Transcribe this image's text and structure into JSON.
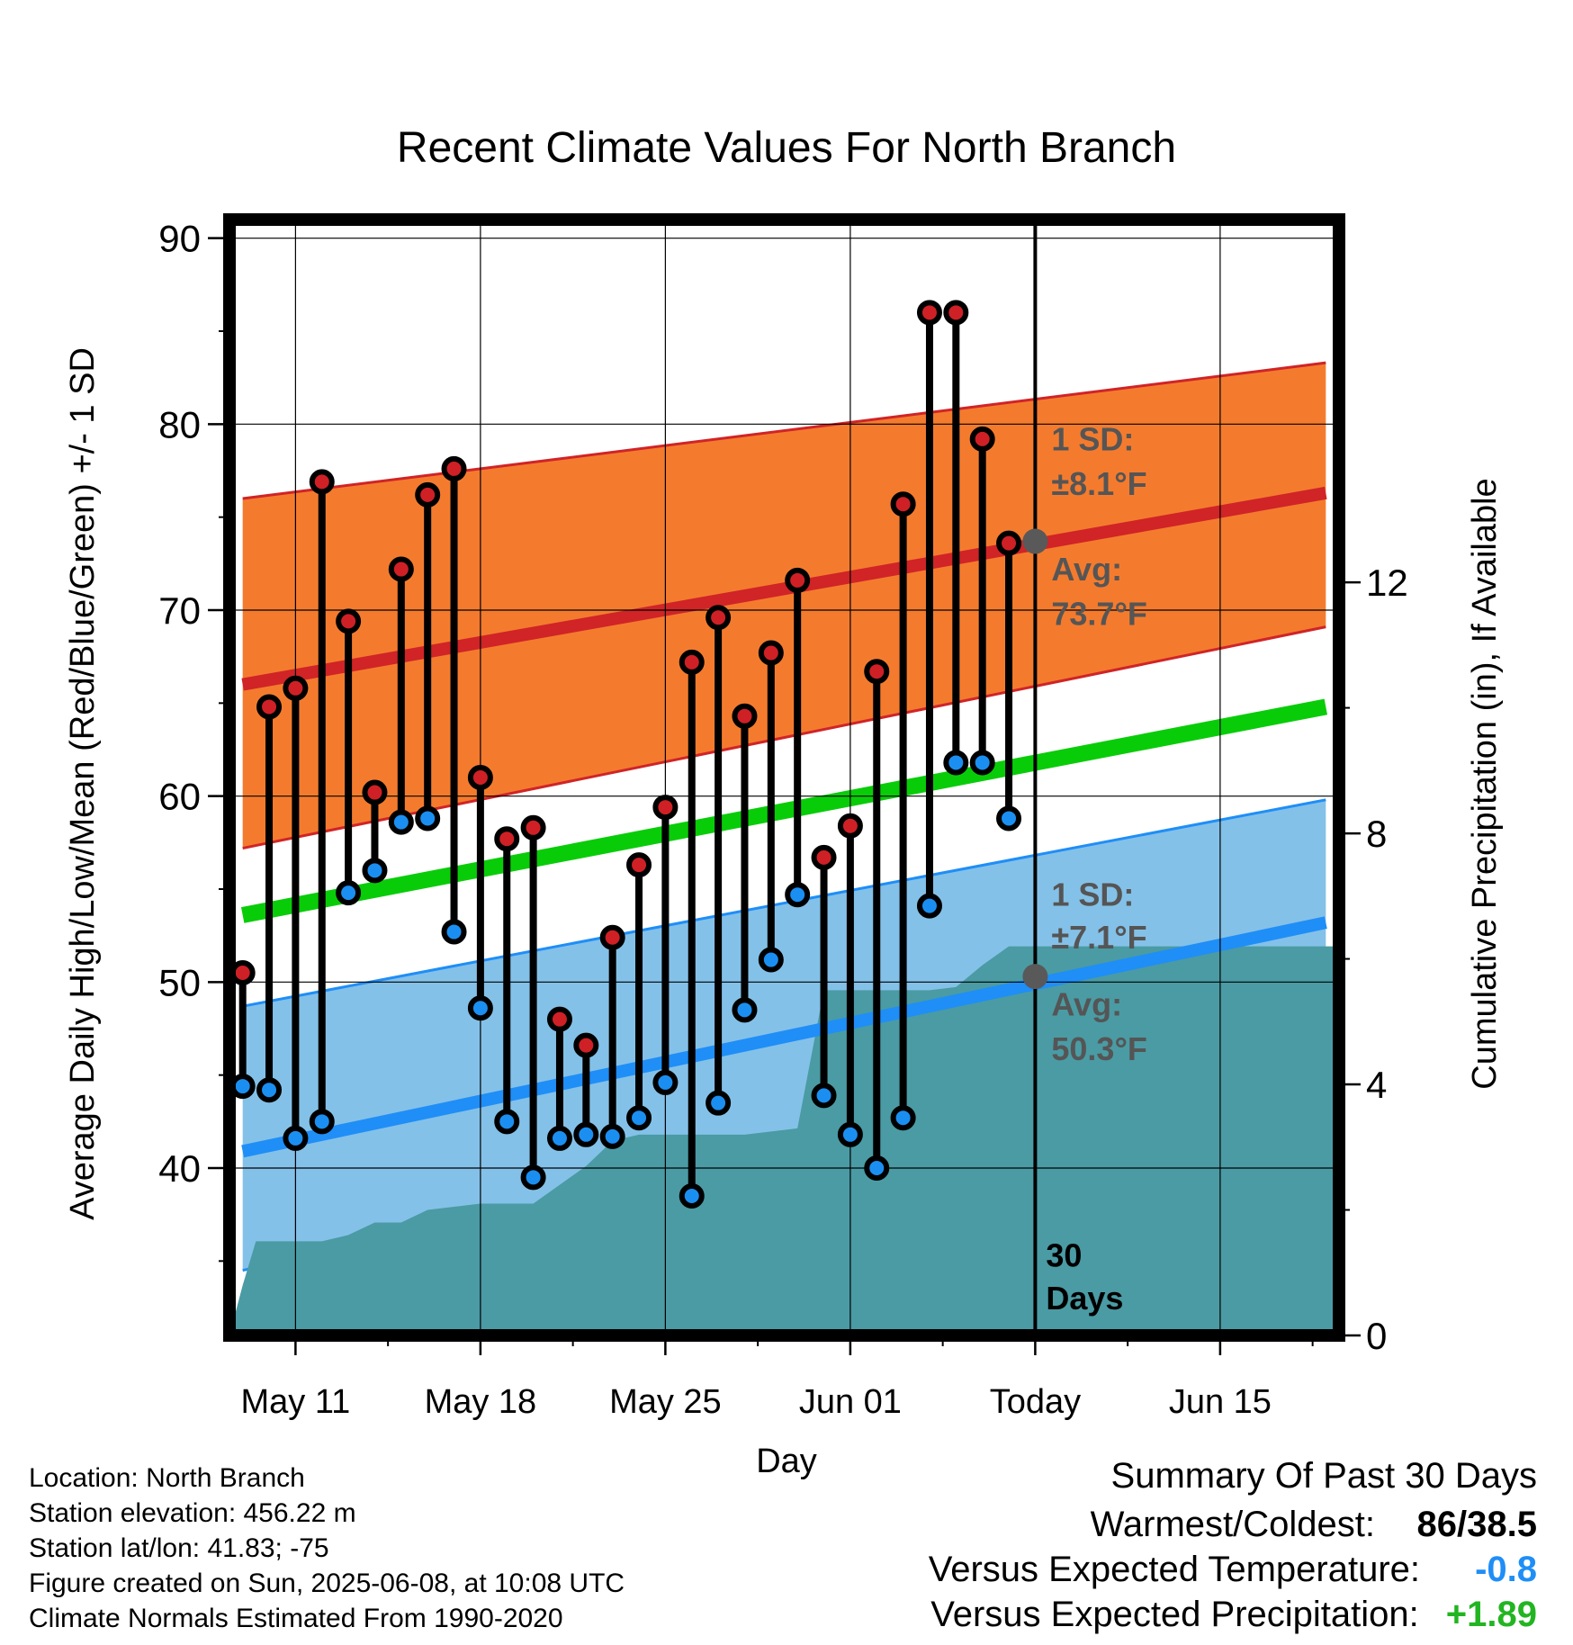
{
  "chart_data": {
    "type": "line",
    "title": "Recent Climate Values For North Branch",
    "xlabel": "Day",
    "ylabel": "Average Daily High/Low/Mean (Red/Blue/Green) +/- 1 SD",
    "y2label": "Cumulative Precipitation (in), If Available",
    "ylim": [
      31,
      91
    ],
    "y2lim": [
      0,
      17.78
    ],
    "yticks": [
      40,
      50,
      60,
      70,
      80,
      90
    ],
    "y2ticks": [
      0,
      4,
      8,
      12
    ],
    "xlim": [
      -0.5,
      41.5
    ],
    "xticks": [
      {
        "day": 2,
        "label": "May 11"
      },
      {
        "day": 9,
        "label": "May 18"
      },
      {
        "day": 16,
        "label": "May 25"
      },
      {
        "day": 23,
        "label": "Jun 01"
      },
      {
        "day": 30,
        "label": "Today"
      },
      {
        "day": 37,
        "label": "Jun 15"
      }
    ],
    "grid": true,
    "today_day": 30,
    "colors": {
      "high_band": "#f47b2e",
      "high_line": "#d02427",
      "low_band": "#84c1e8",
      "low_line": "#1f8ef7",
      "mean_line": "#09cc09",
      "precip": "#4a9ba4",
      "high_marker": "#cf2026",
      "low_marker": "#1b8ff1"
    },
    "normals": {
      "high_mean": [
        [
          0,
          66.0
        ],
        [
          41,
          76.3
        ]
      ],
      "high_upper": [
        [
          0,
          76.0
        ],
        [
          41,
          83.3
        ]
      ],
      "high_lower": [
        [
          0,
          57.2
        ],
        [
          41,
          69.1
        ]
      ],
      "low_mean": [
        [
          0,
          40.9
        ],
        [
          41,
          53.2
        ]
      ],
      "low_upper": [
        [
          0,
          48.7
        ],
        [
          41,
          59.8
        ]
      ],
      "low_lower": [
        [
          0,
          34.5
        ],
        [
          41,
          47.3
        ]
      ],
      "daily_mean": [
        [
          0,
          53.6
        ],
        [
          41,
          64.8
        ]
      ]
    },
    "daily": {
      "day": [
        0,
        1,
        2,
        3,
        4,
        5,
        6,
        7,
        8,
        9,
        10,
        11,
        12,
        13,
        14,
        15,
        16,
        17,
        18,
        19,
        20,
        21,
        22,
        23,
        24,
        25,
        26,
        27,
        28,
        29
      ],
      "high": [
        50.5,
        64.8,
        65.8,
        76.9,
        69.4,
        60.2,
        72.2,
        76.2,
        77.6,
        61.0,
        57.7,
        58.3,
        48.0,
        46.6,
        52.4,
        56.3,
        59.4,
        67.2,
        69.6,
        64.3,
        67.7,
        71.6,
        56.7,
        58.4,
        66.7,
        75.7,
        86.0,
        86.0,
        79.2,
        73.6
      ],
      "low": [
        44.4,
        44.2,
        41.6,
        42.5,
        54.8,
        56.0,
        58.6,
        58.8,
        52.7,
        48.6,
        42.5,
        39.5,
        41.6,
        41.8,
        41.7,
        42.7,
        44.6,
        38.5,
        43.5,
        48.5,
        51.2,
        54.7,
        43.9,
        41.8,
        40.0,
        42.7,
        54.1,
        61.8,
        61.8,
        58.8
      ]
    },
    "precip": {
      "day": [
        -0.5,
        0,
        0.5,
        1,
        2,
        3,
        4,
        5,
        6,
        7,
        8,
        9,
        10,
        11,
        12,
        13,
        14,
        15,
        16,
        17,
        18,
        19,
        20,
        21,
        22,
        23,
        24,
        25,
        26,
        27,
        28,
        29,
        30,
        31,
        41.5
      ],
      "inches": [
        0,
        0.8,
        1.5,
        1.5,
        1.5,
        1.5,
        1.6,
        1.8,
        1.8,
        2.0,
        2.05,
        2.1,
        2.1,
        2.1,
        2.4,
        2.7,
        3.1,
        3.2,
        3.2,
        3.2,
        3.2,
        3.2,
        3.25,
        3.3,
        5.5,
        5.5,
        5.5,
        5.5,
        5.5,
        5.55,
        5.9,
        6.2,
        6.2,
        6.2,
        6.2
      ]
    },
    "annotations": {
      "high_sd_label": "1 SD:",
      "high_sd_value": "±8.1°F",
      "high_avg_label": "Avg:",
      "high_avg_value": "73.7°F",
      "high_avg_point": 73.7,
      "low_sd_label": "1 SD:",
      "low_sd_value": "±7.1°F",
      "low_avg_label": "Avg:",
      "low_avg_value": "50.3°F",
      "low_avg_point": 50.3,
      "days_line1": "30",
      "days_line2": "Days"
    }
  },
  "info": {
    "location": "Location: North Branch",
    "elevation": "Station elevation: 456.22 m",
    "latlon": "Station lat/lon: 41.83; -75",
    "created": "Figure created on Sun, 2025-06-08, at 10:08 UTC",
    "normals": "Climate Normals Estimated From 1990-2020"
  },
  "summary": {
    "title": "Summary Of Past 30 Days",
    "warmest_coldest_label": "Warmest/Coldest:",
    "warmest_coldest_value": "86/38.5",
    "vs_temp_label": "Versus Expected Temperature:",
    "vs_temp_value": "-0.8",
    "vs_temp_color": "#1f8ef7",
    "vs_precip_label": "Versus Expected Precipitation:",
    "vs_precip_value": "+1.89",
    "vs_precip_color": "#22b522"
  }
}
